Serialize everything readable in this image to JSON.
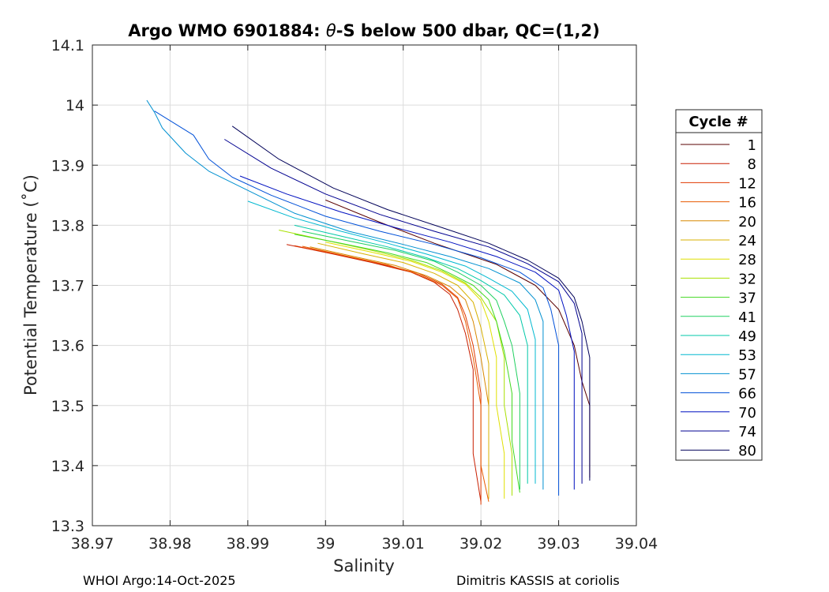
{
  "chart_data": {
    "type": "line",
    "title_prefix": "Argo WMO 6901884: ",
    "title_symbol": "θ",
    "title_suffix": "-S below 500 dbar,  QC=(1,2)",
    "xlabel": "Salinity",
    "ylabel": "Potential Temperature (˚C)",
    "xlim": [
      38.97,
      39.04
    ],
    "ylim": [
      13.3,
      14.1
    ],
    "xticks": [
      "38.97",
      "38.98",
      "38.99",
      "39",
      "39.01",
      "39.02",
      "39.03",
      "39.04"
    ],
    "yticks": [
      "13.3",
      "13.4",
      "13.5",
      "13.6",
      "13.7",
      "13.8",
      "13.9",
      "14",
      "14.1"
    ],
    "grid": true,
    "legend": {
      "title": "Cycle #",
      "position": "outside-right",
      "entries": [
        {
          "label": "1",
          "color": "#5a0000"
        },
        {
          "label": "8",
          "color": "#c81e00"
        },
        {
          "label": "12",
          "color": "#e03800"
        },
        {
          "label": "16",
          "color": "#e85a00"
        },
        {
          "label": "20",
          "color": "#d88800"
        },
        {
          "label": "24",
          "color": "#d8b000"
        },
        {
          "label": "28",
          "color": "#e0e000"
        },
        {
          "label": "32",
          "color": "#a8e000"
        },
        {
          "label": "37",
          "color": "#40d820"
        },
        {
          "label": "41",
          "color": "#20d060"
        },
        {
          "label": "49",
          "color": "#00c8a8"
        },
        {
          "label": "53",
          "color": "#00b8d0"
        },
        {
          "label": "57",
          "color": "#0090d0"
        },
        {
          "label": "66",
          "color": "#0050d8"
        },
        {
          "label": "70",
          "color": "#0010c0"
        },
        {
          "label": "74",
          "color": "#000090"
        },
        {
          "label": "80",
          "color": "#000058"
        }
      ]
    },
    "series": [
      {
        "name": "1",
        "color": "#5a0000",
        "points": [
          [
            39.0,
            13.842
          ],
          [
            39.007,
            13.805
          ],
          [
            39.014,
            13.77
          ],
          [
            39.022,
            13.735
          ],
          [
            39.027,
            13.7
          ],
          [
            39.03,
            13.66
          ],
          [
            39.032,
            13.6
          ],
          [
            39.033,
            13.54
          ],
          [
            39.034,
            13.5
          ],
          [
            39.034,
            13.44
          ],
          [
            39.034,
            13.38
          ]
        ]
      },
      {
        "name": "8",
        "color": "#c81e00",
        "points": [
          [
            38.995,
            13.768
          ],
          [
            39.001,
            13.752
          ],
          [
            39.006,
            13.738
          ],
          [
            39.011,
            13.722
          ],
          [
            39.014,
            13.705
          ],
          [
            39.016,
            13.685
          ],
          [
            39.017,
            13.66
          ],
          [
            39.018,
            13.62
          ],
          [
            39.019,
            13.56
          ],
          [
            39.019,
            13.5
          ],
          [
            39.019,
            13.42
          ],
          [
            39.02,
            13.34
          ]
        ]
      },
      {
        "name": "12",
        "color": "#e03800",
        "points": [
          [
            38.996,
            13.766
          ],
          [
            39.002,
            13.75
          ],
          [
            39.007,
            13.736
          ],
          [
            39.012,
            13.72
          ],
          [
            39.015,
            13.702
          ],
          [
            39.017,
            13.68
          ],
          [
            39.018,
            13.65
          ],
          [
            39.019,
            13.6
          ],
          [
            39.02,
            13.52
          ],
          [
            39.02,
            13.44
          ],
          [
            39.02,
            13.335
          ]
        ]
      },
      {
        "name": "16",
        "color": "#e85a00",
        "points": [
          [
            38.997,
            13.765
          ],
          [
            39.003,
            13.748
          ],
          [
            39.008,
            13.734
          ],
          [
            39.012,
            13.718
          ],
          [
            39.015,
            13.7
          ],
          [
            39.017,
            13.678
          ],
          [
            39.018,
            13.64
          ],
          [
            39.019,
            13.58
          ],
          [
            39.02,
            13.5
          ],
          [
            39.02,
            13.4
          ],
          [
            39.021,
            13.34
          ]
        ]
      },
      {
        "name": "20",
        "color": "#d88800",
        "points": [
          [
            38.998,
            13.764
          ],
          [
            39.004,
            13.747
          ],
          [
            39.009,
            13.733
          ],
          [
            39.013,
            13.716
          ],
          [
            39.016,
            13.698
          ],
          [
            39.018,
            13.676
          ],
          [
            39.019,
            13.64
          ],
          [
            39.02,
            13.58
          ],
          [
            39.021,
            13.5
          ],
          [
            39.021,
            13.42
          ],
          [
            39.021,
            13.345
          ]
        ]
      },
      {
        "name": "24",
        "color": "#d8b000",
        "points": [
          [
            38.999,
            13.77
          ],
          [
            39.005,
            13.752
          ],
          [
            39.01,
            13.738
          ],
          [
            39.014,
            13.72
          ],
          [
            39.017,
            13.7
          ],
          [
            39.019,
            13.672
          ],
          [
            39.02,
            13.63
          ],
          [
            39.021,
            13.57
          ],
          [
            39.021,
            13.5
          ],
          [
            39.021,
            13.43
          ],
          [
            39.021,
            13.345
          ]
        ]
      },
      {
        "name": "28",
        "color": "#e0e000",
        "points": [
          [
            39.0,
            13.772
          ],
          [
            39.006,
            13.755
          ],
          [
            39.011,
            13.74
          ],
          [
            39.015,
            13.722
          ],
          [
            39.018,
            13.702
          ],
          [
            39.02,
            13.675
          ],
          [
            39.021,
            13.64
          ],
          [
            39.022,
            13.58
          ],
          [
            39.022,
            13.5
          ],
          [
            39.023,
            13.42
          ],
          [
            39.023,
            13.345
          ]
        ]
      },
      {
        "name": "32",
        "color": "#a8e000",
        "points": [
          [
            38.994,
            13.792
          ],
          [
            39.0,
            13.775
          ],
          [
            39.006,
            13.758
          ],
          [
            39.011,
            13.742
          ],
          [
            39.015,
            13.724
          ],
          [
            39.018,
            13.704
          ],
          [
            39.02,
            13.68
          ],
          [
            39.022,
            13.64
          ],
          [
            39.023,
            13.58
          ],
          [
            39.023,
            13.5
          ],
          [
            39.024,
            13.42
          ],
          [
            39.024,
            13.35
          ]
        ]
      },
      {
        "name": "37",
        "color": "#40d820",
        "points": [
          [
            38.996,
            13.785
          ],
          [
            39.002,
            13.77
          ],
          [
            39.008,
            13.754
          ],
          [
            39.013,
            13.738
          ],
          [
            39.016,
            13.72
          ],
          [
            39.019,
            13.7
          ],
          [
            39.021,
            13.676
          ],
          [
            39.022,
            13.64
          ],
          [
            39.023,
            13.59
          ],
          [
            39.024,
            13.52
          ],
          [
            39.024,
            13.44
          ],
          [
            39.025,
            13.355
          ]
        ]
      },
      {
        "name": "41",
        "color": "#20d060",
        "points": [
          [
            38.997,
            13.79
          ],
          [
            39.003,
            13.774
          ],
          [
            39.009,
            13.758
          ],
          [
            39.014,
            13.74
          ],
          [
            39.017,
            13.722
          ],
          [
            39.02,
            13.7
          ],
          [
            39.022,
            13.675
          ],
          [
            39.023,
            13.64
          ],
          [
            39.024,
            13.6
          ],
          [
            39.025,
            13.52
          ],
          [
            39.025,
            13.44
          ],
          [
            39.025,
            13.36
          ]
        ]
      },
      {
        "name": "49",
        "color": "#00c8a8",
        "points": [
          [
            38.996,
            13.8
          ],
          [
            39.002,
            13.782
          ],
          [
            39.008,
            13.764
          ],
          [
            39.013,
            13.746
          ],
          [
            39.017,
            13.728
          ],
          [
            39.02,
            13.708
          ],
          [
            39.023,
            13.684
          ],
          [
            39.025,
            13.65
          ],
          [
            39.026,
            13.6
          ],
          [
            39.026,
            13.53
          ],
          [
            39.026,
            13.45
          ],
          [
            39.026,
            13.37
          ]
        ]
      },
      {
        "name": "53",
        "color": "#00b8d0",
        "points": [
          [
            38.99,
            13.84
          ],
          [
            38.996,
            13.812
          ],
          [
            39.002,
            13.79
          ],
          [
            39.008,
            13.77
          ],
          [
            39.013,
            13.752
          ],
          [
            39.018,
            13.732
          ],
          [
            39.021,
            13.712
          ],
          [
            39.024,
            13.69
          ],
          [
            39.026,
            13.66
          ],
          [
            39.027,
            13.61
          ],
          [
            39.027,
            13.54
          ],
          [
            39.027,
            13.46
          ],
          [
            39.027,
            13.37
          ]
        ]
      },
      {
        "name": "57",
        "color": "#0090d0",
        "points": [
          [
            38.977,
            14.008
          ],
          [
            38.978,
            13.988
          ],
          [
            38.979,
            13.962
          ],
          [
            38.982,
            13.92
          ],
          [
            38.985,
            13.89
          ],
          [
            38.99,
            13.858
          ],
          [
            38.996,
            13.82
          ],
          [
            39.003,
            13.79
          ],
          [
            39.01,
            13.768
          ],
          [
            39.016,
            13.748
          ],
          [
            39.021,
            13.728
          ],
          [
            39.025,
            13.704
          ],
          [
            39.027,
            13.676
          ],
          [
            39.028,
            13.64
          ],
          [
            39.028,
            13.58
          ],
          [
            39.028,
            13.5
          ],
          [
            39.028,
            13.42
          ],
          [
            39.028,
            13.36
          ]
        ]
      },
      {
        "name": "66",
        "color": "#0050d8",
        "points": [
          [
            38.978,
            13.99
          ],
          [
            38.983,
            13.95
          ],
          [
            38.985,
            13.91
          ],
          [
            38.988,
            13.88
          ],
          [
            38.993,
            13.85
          ],
          [
            39.0,
            13.815
          ],
          [
            39.007,
            13.79
          ],
          [
            39.014,
            13.768
          ],
          [
            39.02,
            13.746
          ],
          [
            39.025,
            13.722
          ],
          [
            39.028,
            13.696
          ],
          [
            39.029,
            13.66
          ],
          [
            39.03,
            13.6
          ],
          [
            39.03,
            13.52
          ],
          [
            39.03,
            13.44
          ],
          [
            39.03,
            13.35
          ]
        ]
      },
      {
        "name": "70",
        "color": "#0010c0",
        "points": [
          [
            38.989,
            13.882
          ],
          [
            38.995,
            13.852
          ],
          [
            39.002,
            13.822
          ],
          [
            39.009,
            13.796
          ],
          [
            39.016,
            13.772
          ],
          [
            39.022,
            13.748
          ],
          [
            39.027,
            13.722
          ],
          [
            39.03,
            13.692
          ],
          [
            39.031,
            13.65
          ],
          [
            39.032,
            13.59
          ],
          [
            39.032,
            13.52
          ],
          [
            39.032,
            13.44
          ],
          [
            39.032,
            13.36
          ]
        ]
      },
      {
        "name": "74",
        "color": "#000090",
        "points": [
          [
            38.987,
            13.943
          ],
          [
            38.993,
            13.895
          ],
          [
            39.0,
            13.852
          ],
          [
            39.007,
            13.818
          ],
          [
            39.014,
            13.79
          ],
          [
            39.021,
            13.764
          ],
          [
            39.026,
            13.736
          ],
          [
            39.03,
            13.706
          ],
          [
            39.032,
            13.67
          ],
          [
            39.033,
            13.62
          ],
          [
            39.033,
            13.55
          ],
          [
            39.033,
            13.47
          ],
          [
            39.033,
            13.37
          ]
        ]
      },
      {
        "name": "80",
        "color": "#000058",
        "points": [
          [
            38.988,
            13.965
          ],
          [
            38.994,
            13.91
          ],
          [
            39.001,
            13.862
          ],
          [
            39.008,
            13.826
          ],
          [
            39.015,
            13.796
          ],
          [
            39.021,
            13.77
          ],
          [
            39.026,
            13.742
          ],
          [
            39.03,
            13.712
          ],
          [
            39.032,
            13.68
          ],
          [
            39.033,
            13.64
          ],
          [
            39.034,
            13.58
          ],
          [
            39.034,
            13.5
          ],
          [
            39.034,
            13.43
          ],
          [
            39.034,
            13.375
          ]
        ]
      }
    ]
  },
  "footer": {
    "left": "WHOI Argo:14-Oct-2025",
    "right": "Dimitris KASSIS at coriolis"
  }
}
